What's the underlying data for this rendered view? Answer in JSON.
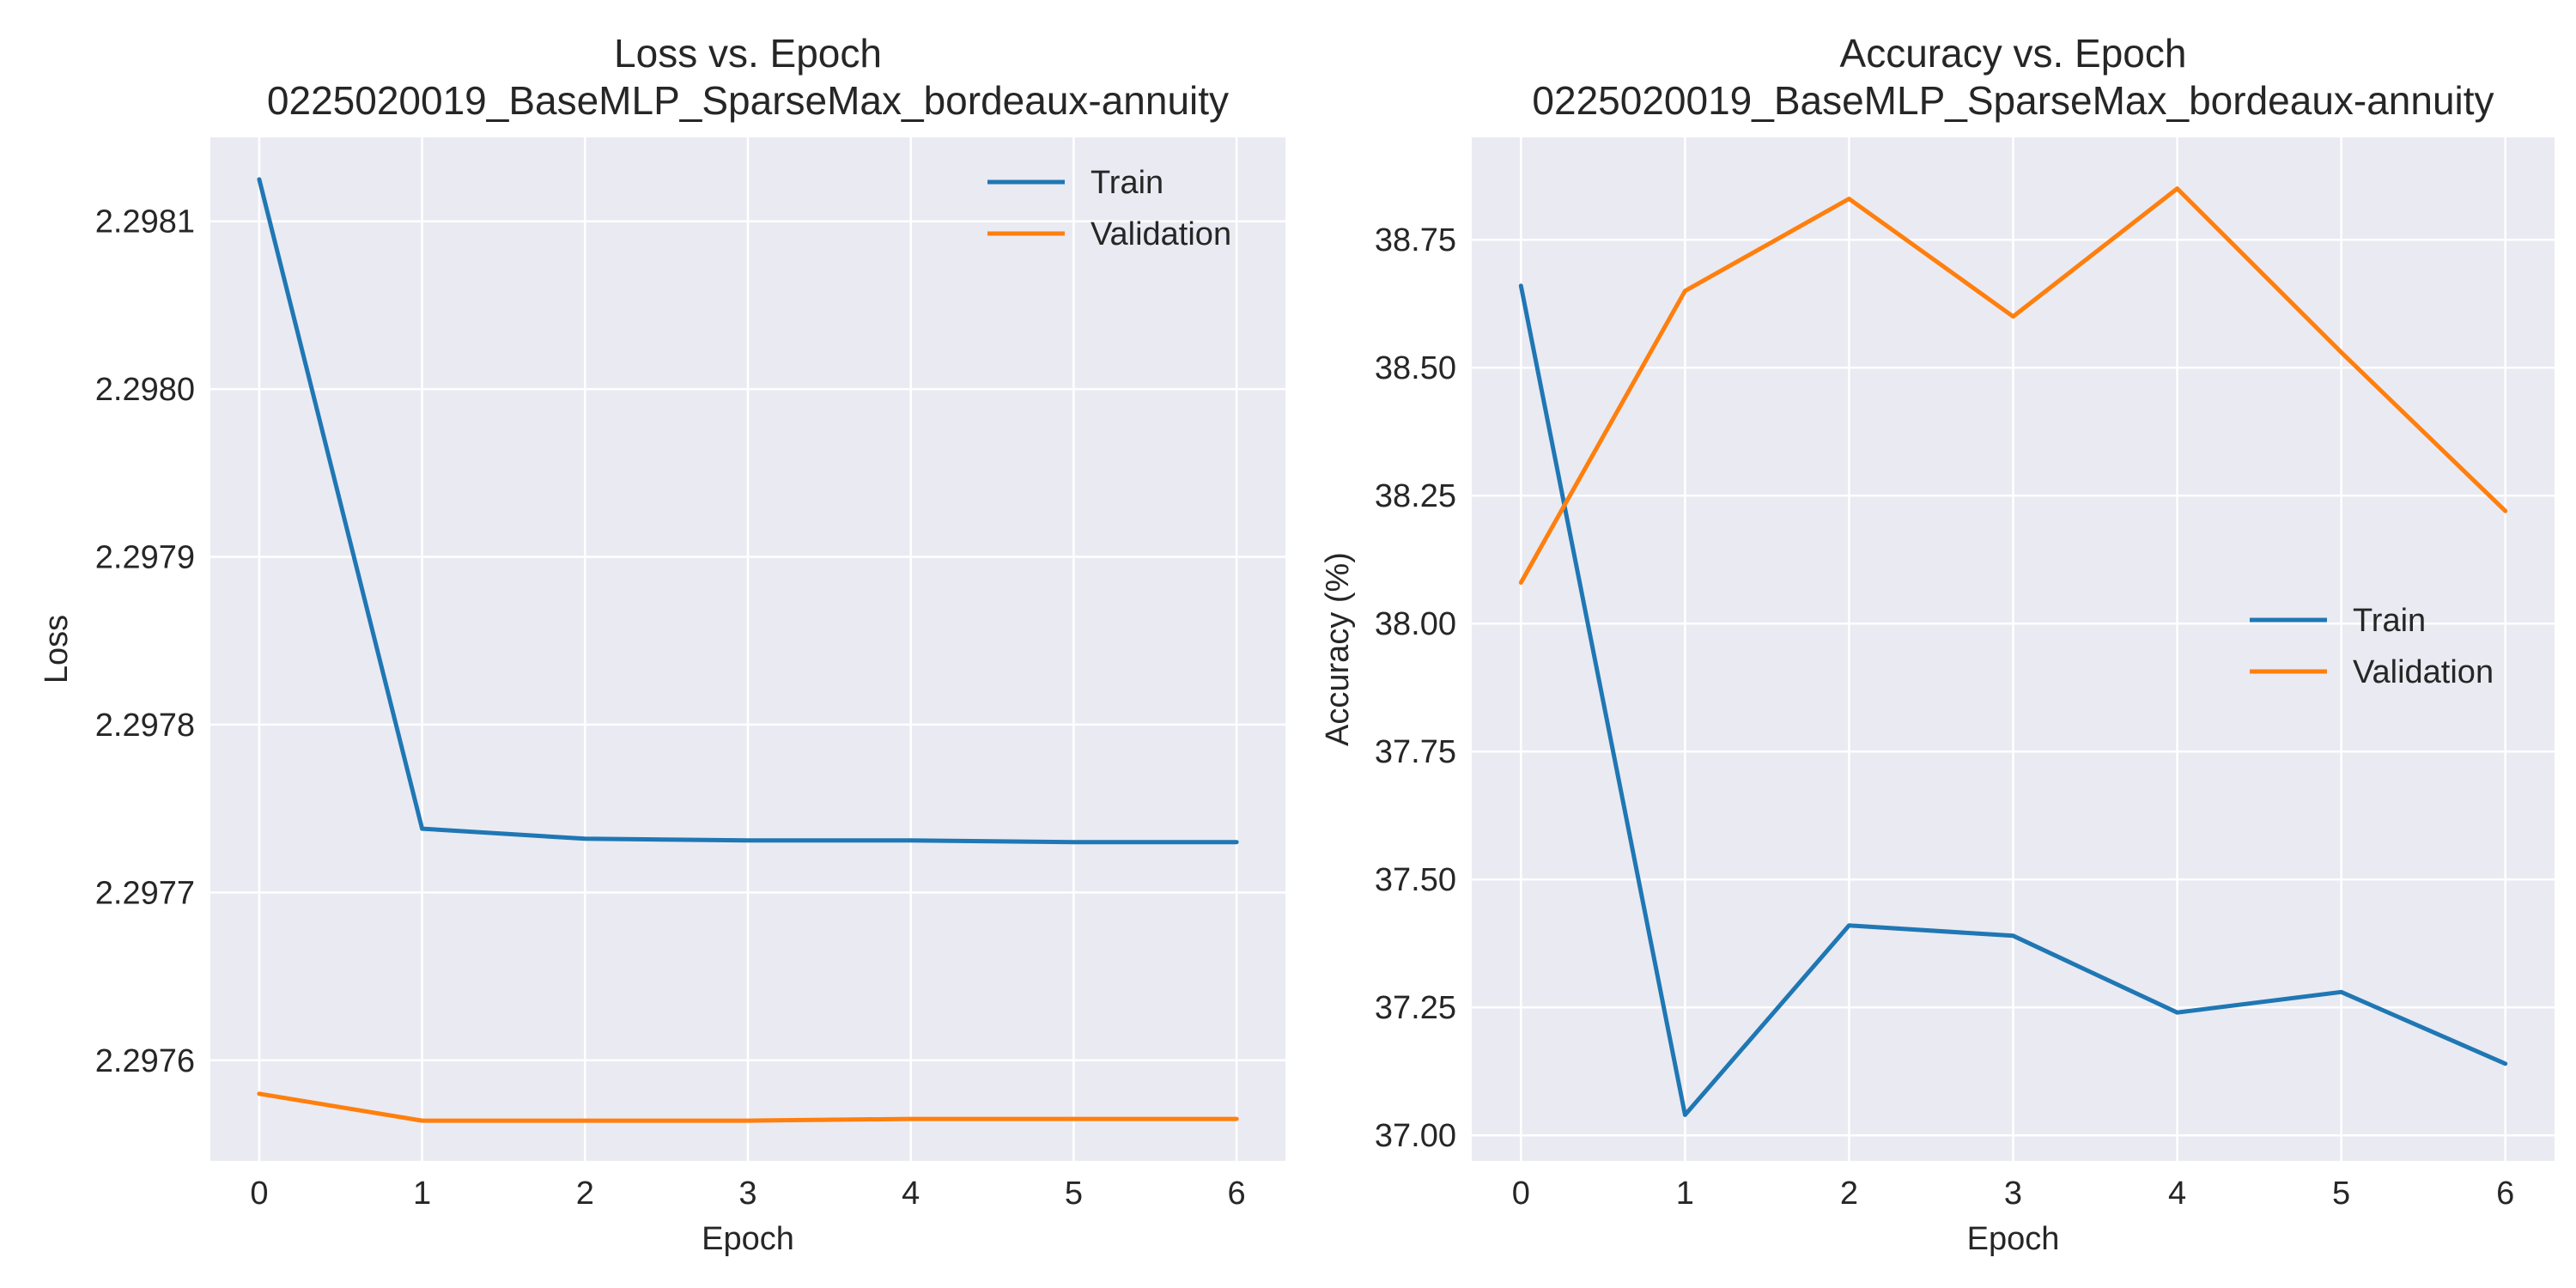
{
  "chart_data": [
    {
      "type": "line",
      "title": "Loss vs. Epoch",
      "subtitle": "0225020019_BaseMLP_SparseMax_bordeaux-annuity",
      "xlabel": "Epoch",
      "ylabel": "Loss",
      "x": [
        0,
        1,
        2,
        3,
        4,
        5,
        6
      ],
      "series": [
        {
          "name": "Train",
          "color": "#1f77b4",
          "values": [
            2.298125,
            2.297738,
            2.297732,
            2.297731,
            2.297731,
            2.29773,
            2.29773
          ]
        },
        {
          "name": "Validation",
          "color": "#ff7f0e",
          "values": [
            2.29758,
            2.297564,
            2.297564,
            2.297564,
            2.297565,
            2.297565,
            2.297565
          ]
        }
      ],
      "xlim": [
        -0.3,
        6.3
      ],
      "ylim": [
        2.29754,
        2.29815
      ],
      "xticks": [
        0,
        1,
        2,
        3,
        4,
        5,
        6
      ],
      "xtick_labels": [
        "0",
        "1",
        "2",
        "3",
        "4",
        "5",
        "6"
      ],
      "yticks": [
        2.2976,
        2.2977,
        2.2978,
        2.2979,
        2.298,
        2.2981
      ],
      "ytick_labels": [
        "2.2976",
        "2.2977",
        "2.2978",
        "2.2979",
        "2.2980",
        "2.2981"
      ],
      "grid": true,
      "legend": "upper right"
    },
    {
      "type": "line",
      "title": "Accuracy vs. Epoch",
      "subtitle": "0225020019_BaseMLP_SparseMax_bordeaux-annuity",
      "xlabel": "Epoch",
      "ylabel": "Accuracy (%)",
      "x": [
        0,
        1,
        2,
        3,
        4,
        5,
        6
      ],
      "series": [
        {
          "name": "Train",
          "color": "#1f77b4",
          "values": [
            38.66,
            37.04,
            37.41,
            37.39,
            37.24,
            37.28,
            37.14
          ]
        },
        {
          "name": "Validation",
          "color": "#ff7f0e",
          "values": [
            38.08,
            38.65,
            38.83,
            38.6,
            38.85,
            38.53,
            38.22
          ]
        }
      ],
      "xlim": [
        -0.3,
        6.3
      ],
      "ylim": [
        36.95,
        38.95
      ],
      "xticks": [
        0,
        1,
        2,
        3,
        4,
        5,
        6
      ],
      "xtick_labels": [
        "0",
        "1",
        "2",
        "3",
        "4",
        "5",
        "6"
      ],
      "yticks": [
        37.0,
        37.25,
        37.5,
        37.75,
        38.0,
        38.25,
        38.5,
        38.75
      ],
      "ytick_labels": [
        "37.00",
        "37.25",
        "37.50",
        "37.75",
        "38.00",
        "38.25",
        "38.50",
        "38.75"
      ],
      "grid": true,
      "legend": "center right"
    }
  ]
}
